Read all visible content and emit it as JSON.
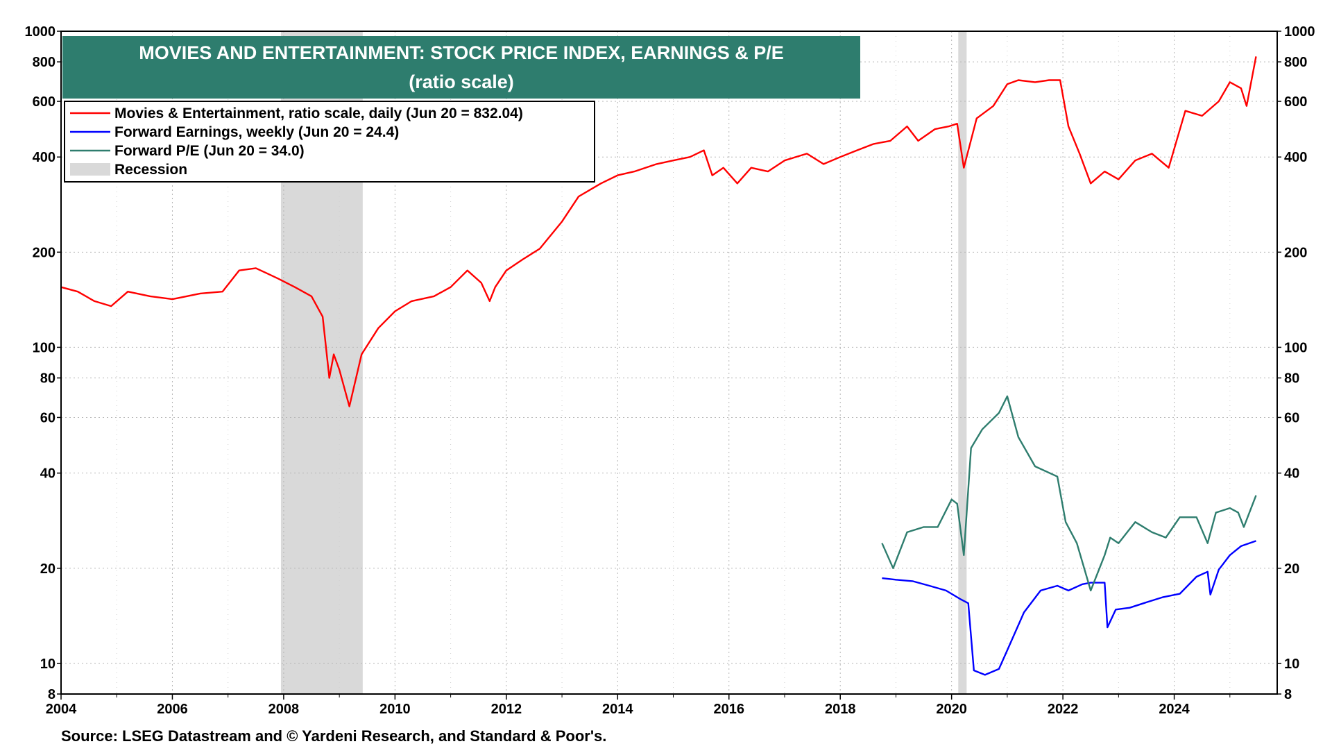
{
  "chart_data": {
    "type": "line",
    "title": "MOVIES AND ENTERTAINMENT: STOCK PRICE INDEX, EARNINGS & P/E",
    "subtitle": "(ratio scale)",
    "scale": "log",
    "ylim": [
      8,
      1000
    ],
    "xlim": [
      2004.0,
      2025.85
    ],
    "y_ticks": [
      8,
      10,
      20,
      40,
      60,
      80,
      100,
      200,
      400,
      600,
      800,
      1000
    ],
    "x_ticks": [
      2004,
      2006,
      2008,
      2010,
      2012,
      2014,
      2016,
      2018,
      2020,
      2022,
      2024
    ],
    "grid": true,
    "legend_placement": "top-left",
    "source": "Source: LSEG Datastream and © Yardeni Research, and Standard & Poor's.",
    "recessions": [
      {
        "start": 2007.95,
        "end": 2009.42
      },
      {
        "start": 2020.12,
        "end": 2020.27
      }
    ],
    "series": [
      {
        "name": "Movies & Entertainment, ratio scale, daily (Jun 20 = 832.04)",
        "color": "#ff0000",
        "x": [
          2004.0,
          2004.3,
          2004.6,
          2004.9,
          2005.2,
          2005.6,
          2006.0,
          2006.5,
          2006.9,
          2007.2,
          2007.5,
          2007.9,
          2008.2,
          2008.5,
          2008.7,
          2008.82,
          2008.9,
          2009.0,
          2009.18,
          2009.4,
          2009.7,
          2010.0,
          2010.3,
          2010.7,
          2011.0,
          2011.3,
          2011.55,
          2011.7,
          2011.8,
          2012.0,
          2012.3,
          2012.6,
          2013.0,
          2013.3,
          2013.7,
          2014.0,
          2014.3,
          2014.7,
          2015.0,
          2015.3,
          2015.55,
          2015.7,
          2015.9,
          2016.15,
          2016.4,
          2016.7,
          2017.0,
          2017.4,
          2017.7,
          2018.0,
          2018.3,
          2018.6,
          2018.9,
          2019.2,
          2019.4,
          2019.7,
          2019.95,
          2020.1,
          2020.22,
          2020.45,
          2020.75,
          2021.0,
          2021.2,
          2021.5,
          2021.75,
          2021.95,
          2022.1,
          2022.3,
          2022.5,
          2022.75,
          2023.0,
          2023.3,
          2023.6,
          2023.9,
          2024.2,
          2024.5,
          2024.8,
          2025.0,
          2025.2,
          2025.3,
          2025.47
        ],
        "values": [
          155,
          150,
          140,
          135,
          150,
          145,
          142,
          148,
          150,
          175,
          178,
          165,
          155,
          145,
          125,
          80,
          95,
          85,
          65,
          95,
          115,
          130,
          140,
          145,
          155,
          175,
          160,
          140,
          155,
          175,
          190,
          205,
          250,
          300,
          330,
          350,
          360,
          380,
          390,
          400,
          420,
          350,
          370,
          330,
          370,
          360,
          390,
          410,
          380,
          400,
          420,
          440,
          450,
          500,
          450,
          490,
          500,
          510,
          370,
          530,
          580,
          680,
          700,
          690,
          700,
          700,
          500,
          410,
          330,
          360,
          340,
          390,
          410,
          370,
          560,
          540,
          600,
          690,
          660,
          580,
          832.04
        ]
      },
      {
        "name": "Forward Earnings, weekly (Jun 20 = 24.4)",
        "color": "#0000ff",
        "x": [
          2018.75,
          2019.0,
          2019.3,
          2019.6,
          2019.9,
          2020.15,
          2020.3,
          2020.4,
          2020.6,
          2020.85,
          2021.0,
          2021.3,
          2021.6,
          2021.9,
          2022.1,
          2022.35,
          2022.5,
          2022.75,
          2022.8,
          2022.95,
          2023.2,
          2023.5,
          2023.8,
          2024.1,
          2024.4,
          2024.6,
          2024.65,
          2024.8,
          2025.0,
          2025.2,
          2025.47
        ],
        "values": [
          18.6,
          18.4,
          18.2,
          17.6,
          17.0,
          16.0,
          15.5,
          9.5,
          9.2,
          9.6,
          11.0,
          14.5,
          17.0,
          17.6,
          17.0,
          17.8,
          18.0,
          18.0,
          13.0,
          14.8,
          15.0,
          15.6,
          16.2,
          16.6,
          18.8,
          19.5,
          16.5,
          19.8,
          22.0,
          23.5,
          24.4
        ]
      },
      {
        "name": "Forward P/E (Jun 20 = 34.0)",
        "color": "#2e7d6e",
        "x": [
          2018.75,
          2018.95,
          2019.2,
          2019.5,
          2019.75,
          2020.0,
          2020.1,
          2020.22,
          2020.35,
          2020.55,
          2020.85,
          2021.0,
          2021.2,
          2021.5,
          2021.9,
          2022.05,
          2022.25,
          2022.5,
          2022.75,
          2022.85,
          2023.0,
          2023.3,
          2023.6,
          2023.85,
          2024.1,
          2024.4,
          2024.6,
          2024.75,
          2025.0,
          2025.15,
          2025.25,
          2025.47
        ],
        "values": [
          24,
          20,
          26,
          27,
          27,
          33,
          32,
          22,
          48,
          55,
          62,
          70,
          52,
          42,
          39,
          28,
          24,
          17,
          22,
          25,
          24,
          28,
          26,
          25,
          29,
          29,
          24,
          30,
          31,
          30,
          27,
          34.0
        ]
      }
    ],
    "legend": [
      {
        "label": "Movies & Entertainment, ratio scale, daily (Jun 20 = 832.04)",
        "color": "#ff0000",
        "kind": "line"
      },
      {
        "label": "Forward Earnings, weekly (Jun 20 = 24.4)",
        "color": "#0000ff",
        "kind": "line"
      },
      {
        "label": "Forward P/E (Jun 20 = 34.0)",
        "color": "#2e7d6e",
        "kind": "line"
      },
      {
        "label": "Recession",
        "color": "#d9d9d9",
        "kind": "box"
      }
    ],
    "title_bg_color": "#2e7d6e"
  }
}
